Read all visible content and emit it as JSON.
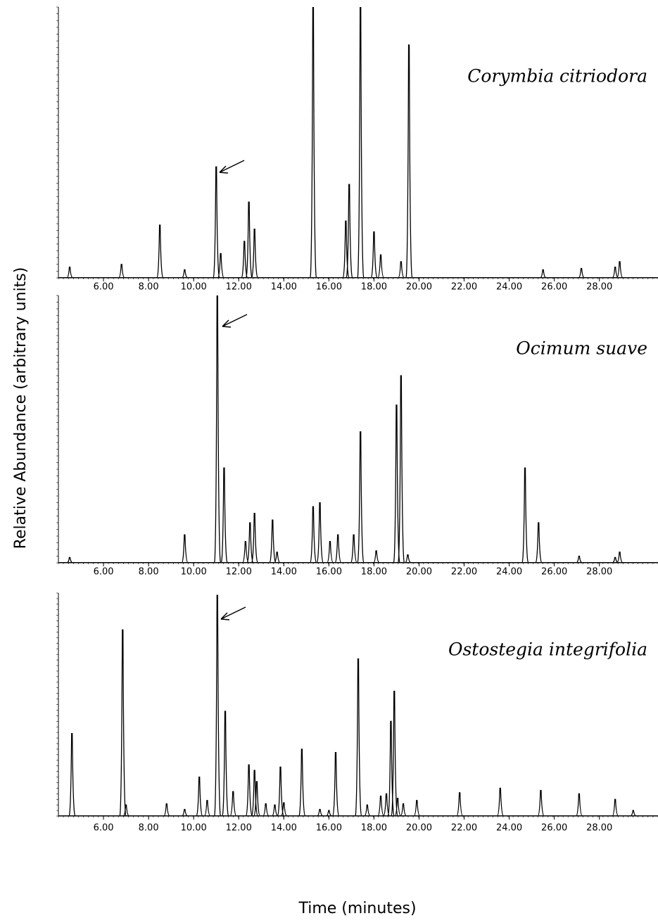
{
  "ylabel": "Relative Abundance (arbitrary units)",
  "xlabel": "Time (minutes)",
  "chart_data": [
    {
      "type": "chromatogram",
      "annotation": "Corymbia citriodora",
      "color": "#000000",
      "xlim": [
        4,
        30.6
      ],
      "ylim": [
        0,
        100
      ],
      "xticks": [
        {
          "value": 6,
          "label": "6.00"
        },
        {
          "value": 8,
          "label": "8.00"
        },
        {
          "value": 10,
          "label": "10.00"
        },
        {
          "value": 12,
          "label": "12.00"
        },
        {
          "value": 14,
          "label": "14.00"
        },
        {
          "value": 16,
          "label": "16.00"
        },
        {
          "value": 18,
          "label": "18.00"
        },
        {
          "value": 20,
          "label": "20.00"
        },
        {
          "value": 22,
          "label": "22.00"
        },
        {
          "value": 24,
          "label": "24.00"
        },
        {
          "value": 26,
          "label": "26.00"
        },
        {
          "value": 28,
          "label": "28.00"
        }
      ],
      "x": [
        4.5,
        6.8,
        8.5,
        9.6,
        11.0,
        11.2,
        12.25,
        12.45,
        12.7,
        15.3,
        16.75,
        16.9,
        17.4,
        18.0,
        18.3,
        19.2,
        19.55,
        25.5,
        27.2,
        28.7,
        28.9
      ],
      "values": [
        4,
        5,
        19.5,
        3,
        41,
        9,
        13.5,
        28,
        18,
        100,
        21,
        34.5,
        100,
        17,
        8.5,
        6,
        86,
        3,
        3.5,
        4,
        6
      ]
    },
    {
      "type": "chromatogram",
      "annotation": "Ocimum suave",
      "color": "#000000",
      "xlim": [
        4,
        30.6
      ],
      "ylim": [
        0,
        100
      ],
      "xticks": [
        {
          "value": 6,
          "label": "6.00"
        },
        {
          "value": 8,
          "label": "8.00"
        },
        {
          "value": 10,
          "label": "10.00"
        },
        {
          "value": 12,
          "label": "12.00"
        },
        {
          "value": 14,
          "label": "14.00"
        },
        {
          "value": 16,
          "label": "16.00"
        },
        {
          "value": 18,
          "label": "18.00"
        },
        {
          "value": 20,
          "label": "20.00"
        },
        {
          "value": 22,
          "label": "22.00"
        },
        {
          "value": 24,
          "label": "24.00"
        },
        {
          "value": 26,
          "label": "26.00"
        },
        {
          "value": 28,
          "label": "28.00"
        }
      ],
      "x": [
        4.5,
        9.6,
        11.05,
        11.35,
        12.3,
        12.5,
        12.7,
        13.5,
        13.7,
        15.3,
        15.6,
        16.05,
        16.4,
        17.1,
        17.4,
        18.1,
        19.0,
        19.2,
        19.5,
        24.7,
        25.3,
        27.1,
        28.7,
        28.9
      ],
      "values": [
        2,
        10.5,
        100,
        35.5,
        8,
        15,
        18.5,
        16,
        4,
        21,
        22.5,
        8,
        10.5,
        10.5,
        49,
        4.5,
        59,
        70,
        3,
        35.5,
        15,
        2.5,
        2,
        4
      ]
    },
    {
      "type": "chromatogram",
      "annotation": "Ostostegia integrifolia",
      "color": "#000000",
      "xlim": [
        4,
        30.6
      ],
      "ylim": [
        0,
        100
      ],
      "xticks": [
        {
          "value": 6,
          "label": "6.00"
        },
        {
          "value": 8,
          "label": "8.00"
        },
        {
          "value": 10,
          "label": "10.00"
        },
        {
          "value": 12,
          "label": "12.00"
        },
        {
          "value": 14,
          "label": "14.00"
        },
        {
          "value": 16,
          "label": "16.00"
        },
        {
          "value": 18,
          "label": "18.00"
        },
        {
          "value": 20,
          "label": "20.00"
        },
        {
          "value": 22,
          "label": "22.00"
        },
        {
          "value": 24,
          "label": "24.00"
        },
        {
          "value": 26,
          "label": "26.00"
        },
        {
          "value": 28,
          "label": "28.00"
        }
      ],
      "x": [
        4.6,
        6.85,
        7.0,
        8.8,
        9.6,
        10.25,
        10.6,
        11.05,
        11.4,
        11.75,
        12.45,
        12.7,
        12.8,
        13.2,
        13.6,
        13.85,
        14.0,
        14.8,
        15.6,
        16.0,
        16.3,
        17.3,
        17.7,
        18.3,
        18.55,
        18.75,
        18.9,
        19.05,
        19.3,
        19.9,
        21.8,
        23.6,
        25.4,
        27.1,
        28.7,
        29.5
      ],
      "values": [
        37,
        83.5,
        5,
        5.5,
        3,
        17.5,
        7,
        99,
        47,
        11,
        23,
        20.5,
        15.5,
        5.5,
        5,
        22,
        6,
        30,
        3,
        2.5,
        28.5,
        70.5,
        5,
        9,
        10,
        42.5,
        56,
        8,
        5.5,
        7,
        10.5,
        12.5,
        11.5,
        10,
        7.5,
        2.5
      ]
    }
  ]
}
